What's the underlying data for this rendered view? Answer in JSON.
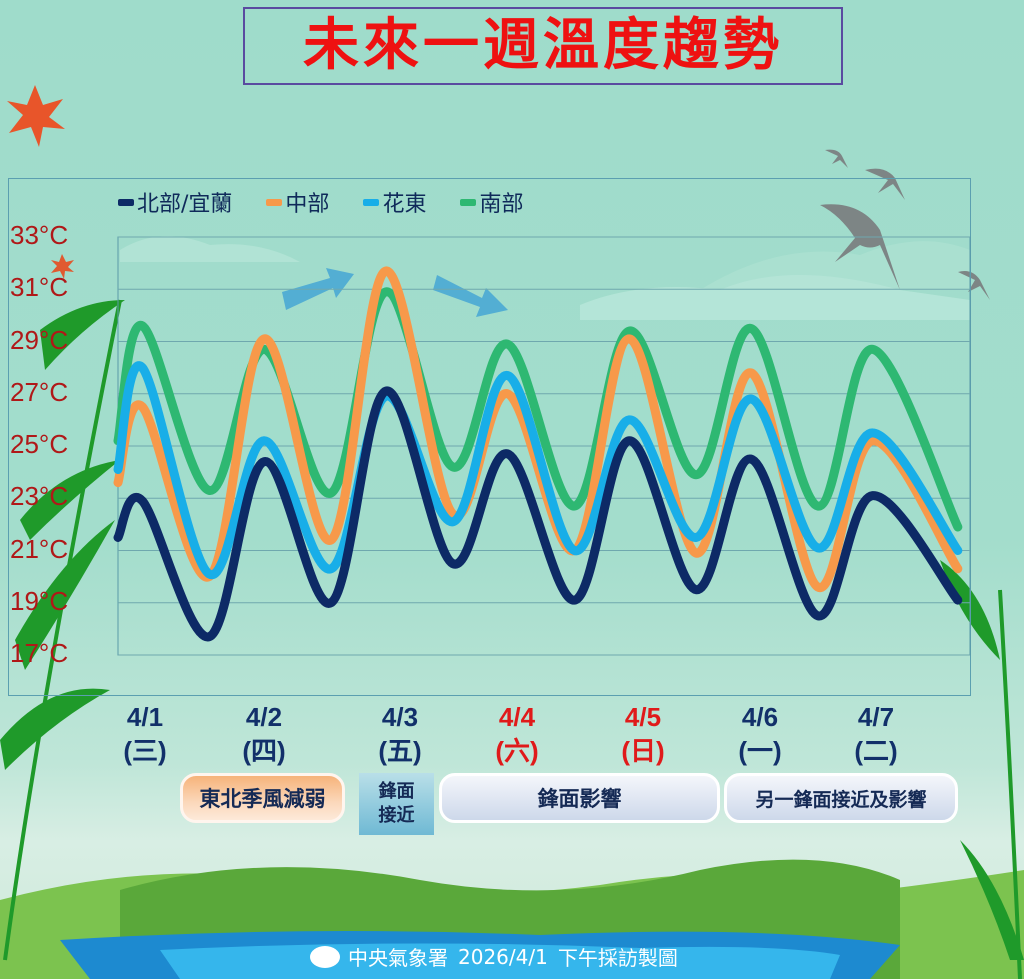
{
  "title": "未來一週溫度趨勢",
  "legend": [
    {
      "label": "北部/宜蘭",
      "color": "#0d2a66"
    },
    {
      "label": "中部",
      "color": "#f7994a"
    },
    {
      "label": "花東",
      "color": "#18aee8"
    },
    {
      "label": "南部",
      "color": "#2eb872"
    }
  ],
  "y_axis": {
    "ticks": [
      "33°C",
      "31°C",
      "29°C",
      "27°C",
      "25°C",
      "23°C",
      "21°C",
      "19°C",
      "17°C"
    ]
  },
  "days": [
    {
      "date": "4/1",
      "weekday": "(三)",
      "color": "#12306a"
    },
    {
      "date": "4/2",
      "weekday": "(四)",
      "color": "#12306a"
    },
    {
      "date": "4/3",
      "weekday": "(五)",
      "color": "#12306a"
    },
    {
      "date": "4/4",
      "weekday": "(六)",
      "color": "#e01a1a"
    },
    {
      "date": "4/5",
      "weekday": "(日)",
      "color": "#e01a1a"
    },
    {
      "date": "4/6",
      "weekday": "(一)",
      "color": "#12306a"
    },
    {
      "date": "4/7",
      "weekday": "(二)",
      "color": "#12306a"
    }
  ],
  "annotations": {
    "monsoon": "東北季風減弱",
    "front_approach_line1": "鋒面",
    "front_approach_line2": "接近",
    "front_effect": "鋒面影響",
    "another_front": "另一鋒面接近及影響"
  },
  "footer": {
    "agency": "中央氣象署",
    "date": "2026/4/1",
    "note": "下午採訪製圖"
  },
  "chart_data": {
    "type": "line",
    "title": "未來一週溫度趨勢",
    "xlabel": "",
    "ylabel": "°C",
    "ylim": [
      17,
      33
    ],
    "grid": true,
    "legend_position": "top",
    "categories": [
      "4/1 (三)",
      "4/2 (四)",
      "4/3 (五)",
      "4/4 (六)",
      "4/5 (日)",
      "4/6 (一)",
      "4/7 (二)"
    ],
    "x": [
      0.0,
      0.2,
      0.75,
      1.2,
      1.75,
      2.2,
      2.75,
      3.2,
      3.75,
      4.2,
      4.75,
      5.2,
      5.75,
      6.2,
      6.9
    ],
    "series": [
      {
        "name": "北部/宜蘭",
        "color": "#0d2a66",
        "values": [
          21.5,
          22.9,
          17.7,
          24.4,
          19.0,
          27.1,
          20.5,
          24.7,
          19.1,
          25.2,
          19.5,
          24.5,
          18.5,
          23.1,
          19.1
        ]
      },
      {
        "name": "中部",
        "color": "#f7994a",
        "values": [
          23.6,
          26.5,
          20.0,
          29.1,
          21.4,
          31.7,
          22.4,
          27.0,
          21.0,
          29.1,
          20.9,
          27.8,
          19.6,
          25.2,
          20.3
        ]
      },
      {
        "name": "花東",
        "color": "#18aee8",
        "values": [
          24.1,
          28.0,
          20.1,
          25.2,
          20.3,
          26.9,
          22.1,
          27.7,
          21.0,
          26.0,
          21.5,
          26.8,
          21.1,
          25.5,
          21.0
        ]
      },
      {
        "name": "南部",
        "color": "#2eb872",
        "values": [
          25.2,
          29.6,
          23.3,
          28.7,
          23.2,
          30.9,
          24.2,
          28.9,
          22.7,
          29.4,
          23.9,
          29.5,
          22.7,
          28.7,
          21.9
        ]
      }
    ]
  }
}
